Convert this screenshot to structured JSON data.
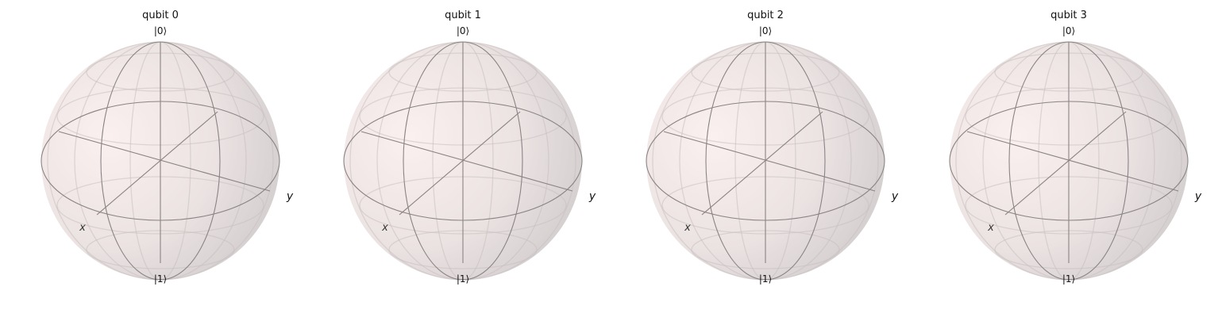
{
  "colors": {
    "sphere_light": "#f8eaea",
    "sphere_dark": "#cfcbcb",
    "wire": "#8a8484",
    "grid": "#c9c0c0",
    "text": "#111111"
  },
  "spheres": [
    {
      "title": "qubit 0",
      "top_label": "|0⟩",
      "bottom_label": "|1⟩",
      "x_label": "x",
      "y_label": "y"
    },
    {
      "title": "qubit 1",
      "top_label": "|0⟩",
      "bottom_label": "|1⟩",
      "x_label": "x",
      "y_label": "y"
    },
    {
      "title": "qubit 2",
      "top_label": "|0⟩",
      "bottom_label": "|1⟩",
      "x_label": "x",
      "y_label": "y"
    },
    {
      "title": "qubit 3",
      "top_label": "|0⟩",
      "bottom_label": "|1⟩",
      "x_label": "x",
      "y_label": "y"
    }
  ]
}
